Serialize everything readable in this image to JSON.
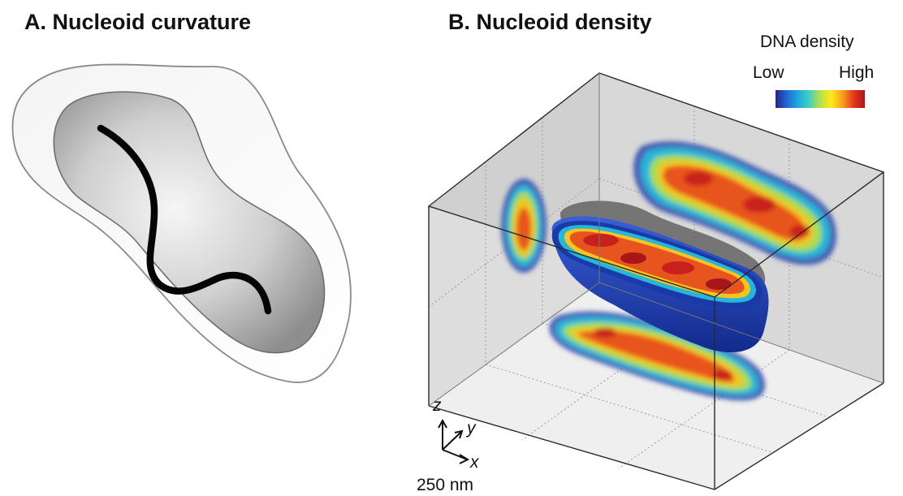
{
  "panel_a": {
    "title": "A. Nucleoid curvature"
  },
  "panel_b": {
    "title": "B. Nucleoid density",
    "legend": {
      "title": "DNA density",
      "low_label": "Low",
      "high_label": "High",
      "colormap": [
        "#27238a",
        "#2166d6",
        "#20a8e0",
        "#40cfc0",
        "#b7e04a",
        "#ffe81a",
        "#f7a01e",
        "#e5371c",
        "#a8161a"
      ]
    },
    "axes": {
      "z": "z",
      "y": "y",
      "x": "x"
    },
    "scale_bar": "250 nm"
  }
}
